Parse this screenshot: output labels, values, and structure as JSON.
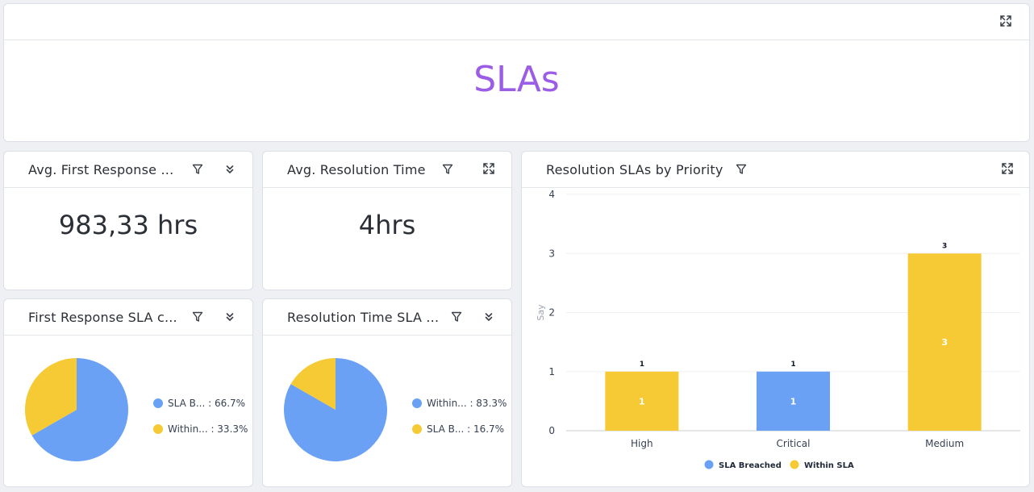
{
  "banner": {
    "title": "SLAs"
  },
  "colors": {
    "blue": "#6aa1f4",
    "yellow": "#f5ca34",
    "title_purple": "#9b5de5"
  },
  "cards": {
    "avg_first_response": {
      "title": "Avg. First Response ...",
      "value": "983,33 hrs"
    },
    "avg_resolution": {
      "title": "Avg. Resolution Time",
      "value": "4hrs"
    },
    "first_response_sla": {
      "title": "First Response SLA c...",
      "legend": [
        {
          "label": "SLA B... : 66.7%",
          "color": "#6aa1f4"
        },
        {
          "label": "Within... : 33.3%",
          "color": "#f5ca34"
        }
      ]
    },
    "resolution_time_sla": {
      "title": "Resolution Time SLA ...",
      "legend": [
        {
          "label": "Within... : 83.3%",
          "color": "#6aa1f4"
        },
        {
          "label": "SLA B... : 16.7%",
          "color": "#f5ca34"
        }
      ]
    },
    "resolution_by_priority": {
      "title": "Resolution SLAs by Priority"
    }
  },
  "chart_data": [
    {
      "type": "pie",
      "title": "First Response SLA c...",
      "slices": [
        {
          "label": "SLA B...",
          "value": 66.7,
          "color": "#6aa1f4"
        },
        {
          "label": "Within...",
          "value": 33.3,
          "color": "#f5ca34"
        }
      ]
    },
    {
      "type": "pie",
      "title": "Resolution Time SLA ...",
      "slices": [
        {
          "label": "Within...",
          "value": 83.3,
          "color": "#6aa1f4"
        },
        {
          "label": "SLA B...",
          "value": 16.7,
          "color": "#f5ca34"
        }
      ]
    },
    {
      "type": "bar",
      "title": "Resolution SLAs by Priority",
      "categories": [
        "High",
        "Critical",
        "Medium"
      ],
      "series": [
        {
          "name": "SLA Breached",
          "color": "#6aa1f4",
          "values": [
            0,
            1,
            0
          ]
        },
        {
          "name": "Within SLA",
          "color": "#f5ca34",
          "values": [
            1,
            0,
            3
          ]
        }
      ],
      "totals": [
        "1",
        "1",
        "3"
      ],
      "yticks": [
        "0",
        "1",
        "2",
        "3",
        "4"
      ],
      "ylim": [
        0,
        4
      ],
      "ylabel": "Say",
      "xlabel": "",
      "grid": true,
      "legend": "bottom"
    }
  ]
}
